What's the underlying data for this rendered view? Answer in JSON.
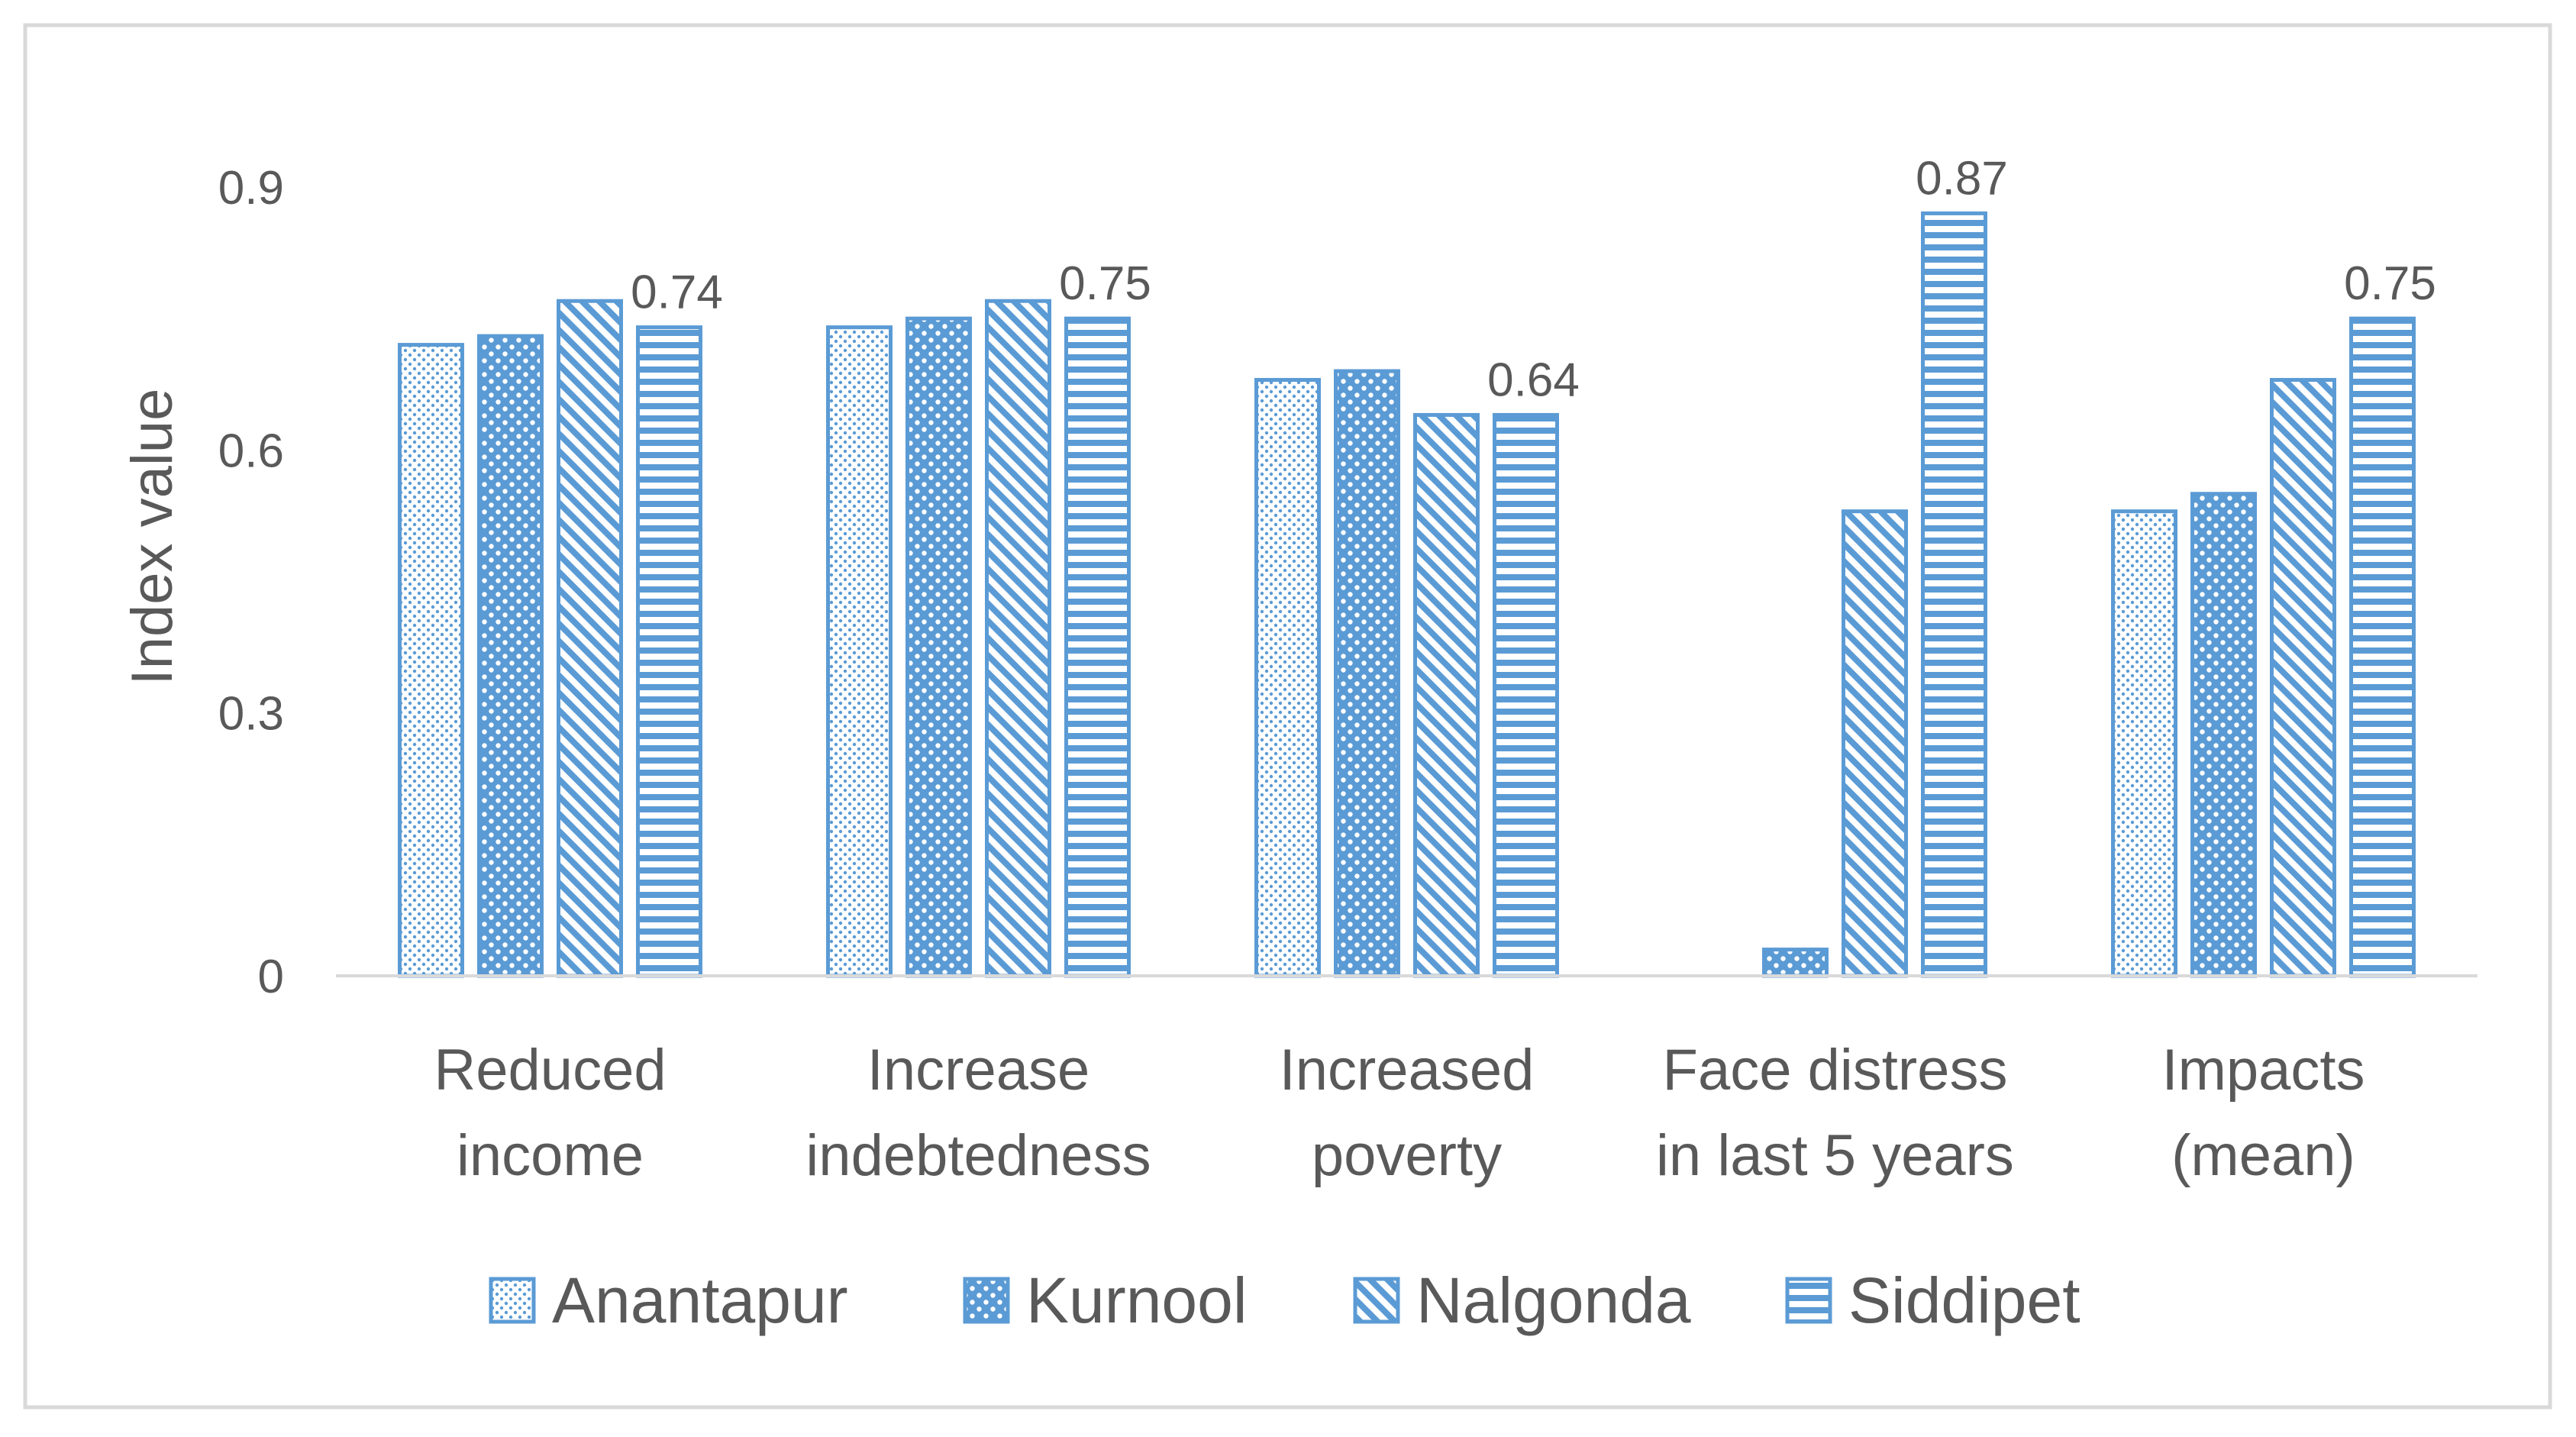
{
  "chart_data": {
    "type": "bar",
    "title": "",
    "xlabel": "",
    "ylabel": "Index value",
    "ylim": [
      0,
      1.05
    ],
    "yticks": [
      "0",
      "0.3",
      "0.6",
      "0.9"
    ],
    "ytick_values": [
      0,
      0.3,
      0.6,
      0.9
    ],
    "grid": false,
    "legend_position": "bottom",
    "categories": [
      [
        "Reduced",
        "income"
      ],
      [
        "Increase",
        "indebtedness"
      ],
      [
        "Increased",
        "poverty"
      ],
      [
        "Face distress",
        "in last 5 years"
      ],
      [
        "Impacts",
        "(mean)"
      ]
    ],
    "series": [
      {
        "name": "Anantapur",
        "pattern": "dots-fine",
        "values": [
          0.72,
          0.74,
          0.68,
          0,
          0.53
        ]
      },
      {
        "name": "Kurnool",
        "pattern": "dots-coarse",
        "values": [
          0.73,
          0.75,
          0.69,
          0.03,
          0.55
        ]
      },
      {
        "name": "Nalgonda",
        "pattern": "diagonal",
        "values": [
          0.77,
          0.77,
          0.64,
          0.53,
          0.68
        ]
      },
      {
        "name": "Siddipet",
        "pattern": "horizontal",
        "values": [
          0.74,
          0.75,
          0.64,
          0.87,
          0.75
        ]
      }
    ],
    "data_labels": [
      {
        "series": "Siddipet",
        "category_index": 0,
        "text": "0.74"
      },
      {
        "series": "Siddipet",
        "category_index": 1,
        "text": "0.75"
      },
      {
        "series": "Siddipet",
        "category_index": 2,
        "text": "0.64"
      },
      {
        "series": "Siddipet",
        "category_index": 3,
        "text": "0.87"
      },
      {
        "series": "Siddipet",
        "category_index": 4,
        "text": "0.75"
      }
    ],
    "colors": {
      "bar": "#5B9BD5",
      "bar_dark": "#4A89C8",
      "axis": "#D9D9D9",
      "text": "#595959",
      "frame": "#D9D9D9"
    }
  }
}
